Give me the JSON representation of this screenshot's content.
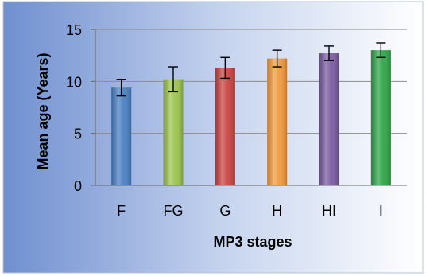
{
  "chart_data": {
    "type": "bar",
    "categories": [
      "F",
      "FG",
      "G",
      "H",
      "HI",
      "I"
    ],
    "values": [
      9.4,
      10.2,
      11.3,
      12.2,
      12.7,
      13.0
    ],
    "error_bars": [
      0.8,
      1.2,
      1.0,
      0.8,
      0.7,
      0.7
    ],
    "colors": [
      "#4a7fc4",
      "#9cc44d",
      "#cc4441",
      "#f29a3d",
      "#7a5aa0",
      "#2fa748"
    ],
    "title": "",
    "xlabel": "MP3 stages",
    "ylabel": "Mean age (Years)",
    "ylim": [
      0,
      15
    ],
    "yticks": [
      0,
      5,
      10,
      15
    ],
    "grid": true,
    "legend": "none"
  }
}
